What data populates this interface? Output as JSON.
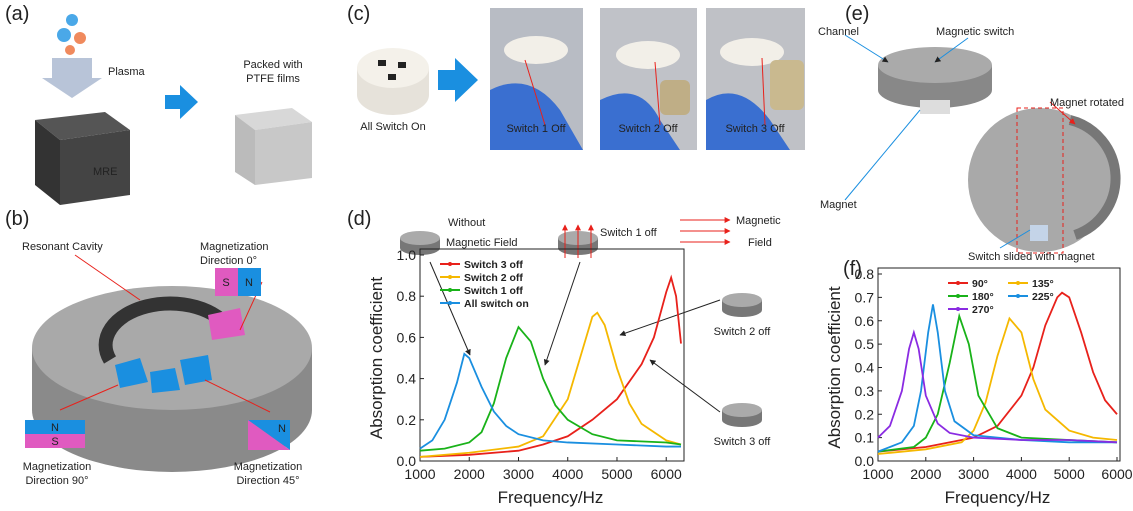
{
  "panel_labels": [
    "(a)",
    "(b)",
    "(c)",
    "(d)",
    "(e)",
    "(f)"
  ],
  "a": {
    "plasma": "Plasma",
    "mre": "MRE",
    "packed": [
      "Packed with",
      "PTFE films"
    ]
  },
  "b": {
    "cavity": "Resonant Cavity",
    "dir0": [
      "Magnetization",
      "Direction 0°"
    ],
    "dir90": [
      "Magnetization",
      "Direction 90°"
    ],
    "dir45": [
      "Magnetization",
      "Direction 45°"
    ],
    "south": "S",
    "north": "N"
  },
  "c": {
    "all_on": "All Switch On",
    "off": [
      "Switch 1 Off",
      "Switch 2 Off",
      "Switch 3 Off"
    ]
  },
  "d_notes": {
    "without": [
      "Without",
      "Magnetic Field"
    ],
    "switch1": "Switch 1 off",
    "field": [
      "Magnetic",
      "Field"
    ],
    "switch2": "Switch 2 off",
    "switch3": "Switch 3 off"
  },
  "e": {
    "channel": "Channel",
    "switch": "Magnetic switch",
    "rotated": "Magnet rotated",
    "magnet": "Magnet",
    "slided": "Switch slided with magnet"
  },
  "chart_data": [
    {
      "type": "line",
      "x_label": "Frequency/Hz",
      "y_label": "Absorption coefficient",
      "xlim": [
        1000,
        6300
      ],
      "xticks": [
        1000,
        2000,
        3000,
        4000,
        5000,
        6000
      ],
      "ylim": [
        0,
        1
      ],
      "yticks": [
        {
          "value": 0,
          "label": "0.0"
        },
        0.2,
        0.4,
        0.6,
        0.8,
        {
          "value": 1,
          "label": "1.0"
        }
      ],
      "legend": "upper left",
      "series": [
        {
          "name": "Switch 3 off",
          "color": "#e8211b",
          "x": [
            1000,
            2000,
            3000,
            3500,
            4000,
            4500,
            5000,
            5500,
            5750,
            6000,
            6100,
            6200,
            6300
          ],
          "values": [
            0.02,
            0.03,
            0.05,
            0.08,
            0.12,
            0.2,
            0.3,
            0.47,
            0.6,
            0.82,
            0.89,
            0.8,
            0.57
          ]
        },
        {
          "name": "Switch 2 off",
          "color": "#f5b800",
          "x": [
            1000,
            2000,
            3000,
            3500,
            4000,
            4250,
            4500,
            4600,
            4750,
            5000,
            5250,
            5500,
            6000,
            6300
          ],
          "values": [
            0.02,
            0.04,
            0.07,
            0.12,
            0.3,
            0.5,
            0.7,
            0.72,
            0.66,
            0.45,
            0.28,
            0.18,
            0.1,
            0.08
          ]
        },
        {
          "name": "Switch 1 off",
          "color": "#19b219",
          "x": [
            1000,
            1500,
            2000,
            2250,
            2500,
            2750,
            3000,
            3250,
            3500,
            3750,
            4000,
            4500,
            5000,
            6000,
            6300
          ],
          "values": [
            0.05,
            0.06,
            0.09,
            0.14,
            0.28,
            0.5,
            0.65,
            0.58,
            0.4,
            0.27,
            0.2,
            0.13,
            0.1,
            0.09,
            0.08
          ]
        },
        {
          "name": "All switch on",
          "color": "#1a8fe0",
          "x": [
            1000,
            1250,
            1500,
            1750,
            1900,
            2000,
            2250,
            2500,
            2750,
            3000,
            3500,
            4000,
            5000,
            6000,
            6300
          ],
          "values": [
            0.06,
            0.1,
            0.2,
            0.38,
            0.52,
            0.5,
            0.36,
            0.24,
            0.17,
            0.13,
            0.1,
            0.09,
            0.08,
            0.07,
            0.07
          ]
        }
      ]
    },
    {
      "type": "line",
      "x_label": "Frequency/Hz",
      "y_label": "Absorption coefficient",
      "xlim": [
        1000,
        6000
      ],
      "xticks": [
        1000,
        2000,
        3000,
        4000,
        5000,
        6000
      ],
      "ylim": [
        0,
        0.8
      ],
      "yticks": [
        {
          "value": 0,
          "label": "0.0"
        },
        0.1,
        0.2,
        0.3,
        0.4,
        0.5,
        0.6,
        0.7,
        0.8
      ],
      "legend": "upper center",
      "series": [
        {
          "name": "90°",
          "color": "#e8211b",
          "x": [
            1000,
            2000,
            3000,
            3500,
            4000,
            4250,
            4500,
            4750,
            4850,
            5000,
            5250,
            5500,
            5750,
            6000
          ],
          "values": [
            0.04,
            0.06,
            0.1,
            0.15,
            0.28,
            0.4,
            0.58,
            0.7,
            0.72,
            0.7,
            0.55,
            0.38,
            0.26,
            0.2
          ]
        },
        {
          "name": "135°",
          "color": "#f5b800",
          "x": [
            1000,
            2000,
            2750,
            3000,
            3250,
            3500,
            3750,
            4000,
            4250,
            4500,
            5000,
            5500,
            6000
          ],
          "values": [
            0.03,
            0.05,
            0.08,
            0.13,
            0.25,
            0.45,
            0.61,
            0.55,
            0.35,
            0.22,
            0.13,
            0.1,
            0.09
          ]
        },
        {
          "name": "180°",
          "color": "#19b219",
          "x": [
            1000,
            1750,
            2000,
            2250,
            2500,
            2700,
            2900,
            3100,
            3500,
            4000,
            5000,
            6000
          ],
          "values": [
            0.04,
            0.06,
            0.1,
            0.2,
            0.42,
            0.62,
            0.5,
            0.28,
            0.14,
            0.1,
            0.09,
            0.08
          ]
        },
        {
          "name": "225°",
          "color": "#1a8fe0",
          "x": [
            1000,
            1500,
            1750,
            1900,
            2050,
            2150,
            2250,
            2400,
            2600,
            3000,
            4000,
            5000,
            6000
          ],
          "values": [
            0.04,
            0.08,
            0.15,
            0.3,
            0.55,
            0.67,
            0.55,
            0.3,
            0.17,
            0.11,
            0.09,
            0.08,
            0.08
          ]
        },
        {
          "name": "270°",
          "color": "#8a2be2",
          "x": [
            1000,
            1250,
            1500,
            1650,
            1750,
            1850,
            2000,
            2250,
            2500,
            3000,
            4000,
            5000,
            6000
          ],
          "values": [
            0.1,
            0.15,
            0.3,
            0.48,
            0.55,
            0.48,
            0.28,
            0.16,
            0.12,
            0.1,
            0.09,
            0.09,
            0.08
          ]
        }
      ]
    }
  ]
}
